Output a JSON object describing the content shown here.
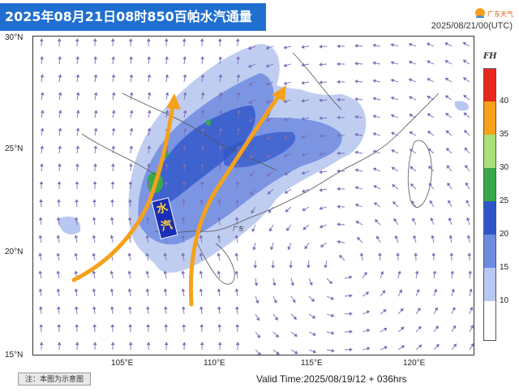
{
  "header": {
    "title": "2025年08月21日08时850百帕水汽通量",
    "timestamp": "2025/08/21/00(UTC)",
    "logo_text": "广东天气"
  },
  "map": {
    "lat_labels": [
      "30°N",
      "25°N",
      "20°N",
      "15°N"
    ],
    "lon_labels": [
      "105°E",
      "110°E",
      "115°E",
      "120°E"
    ],
    "water_vapor_label": "水汽",
    "region_label": "广东"
  },
  "colorbar": {
    "unit": "FH",
    "levels": [
      "40",
      "35",
      "30",
      "25",
      "20",
      "15",
      "10"
    ],
    "colors": [
      "#e8281e",
      "#f5a11c",
      "#a8e07a",
      "#3aa84a",
      "#2f55c8",
      "#6f8be0",
      "#b8c8f0",
      "#ffffff"
    ]
  },
  "footer": {
    "note": "注：本图为示意图",
    "valid_time": "Valid Time:2025/08/19/12 + 036hrs"
  }
}
